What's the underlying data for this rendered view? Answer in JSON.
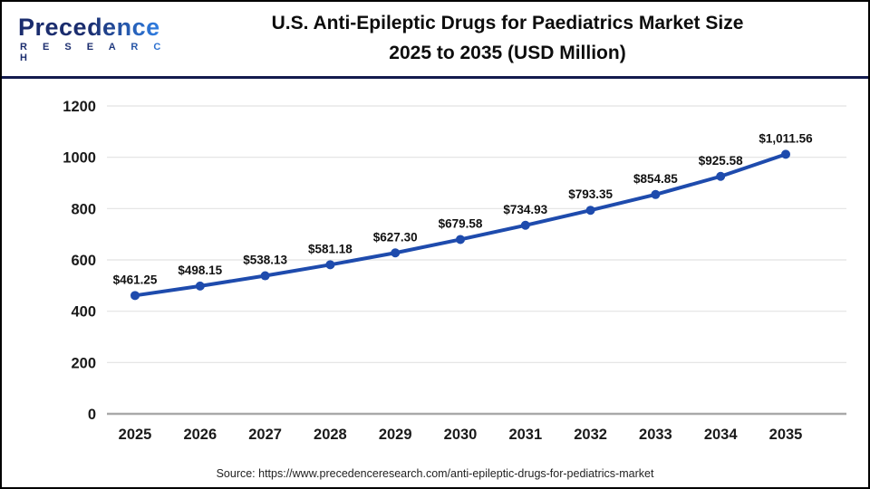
{
  "header": {
    "logo": {
      "brand": "Precedence",
      "subtitle": "R E S E A R C H"
    },
    "title_line1": "U.S. Anti-Epileptic Drugs for Paediatrics Market Size",
    "title_line2": "2025 to 2035 (USD Million)"
  },
  "chart_data": {
    "type": "line",
    "title": "U.S. Anti-Epileptic Drugs for Paediatrics Market Size 2025 to 2035 (USD Million)",
    "categories": [
      "2025",
      "2026",
      "2027",
      "2028",
      "2029",
      "2030",
      "2031",
      "2032",
      "2033",
      "2034",
      "2035"
    ],
    "values": [
      461.25,
      498.15,
      538.13,
      581.18,
      627.3,
      679.58,
      734.93,
      793.35,
      854.85,
      925.58,
      1011.56
    ],
    "point_labels": [
      "$461.25",
      "$498.15",
      "$538.13",
      "$581.18",
      "$627.30",
      "$679.58",
      "$734.93",
      "$793.35",
      "$854.85",
      "$925.58",
      "$1,011.56"
    ],
    "ylim": [
      0,
      1200
    ],
    "ytick_step": 200,
    "yticks": [
      0,
      200,
      400,
      600,
      800,
      1000,
      1200
    ],
    "grid": true,
    "legend": "none",
    "line_color": "#1e4bad",
    "marker_color": "#1e4bad",
    "data_label_color": "#111111",
    "gridline_color": "#e2e2e2",
    "baseline_color": "#a9a9a9",
    "tick_label_color": "#1a1a1a"
  },
  "footer": {
    "source": "Source: https://www.precedenceresearch.com/anti-epileptic-drugs-for-pediatrics-market"
  },
  "colors": {
    "header_divider": "#131b4e",
    "frame_border": "#000000",
    "logo_navy": "#1b2d6e",
    "logo_blue": "#2f7de1"
  }
}
